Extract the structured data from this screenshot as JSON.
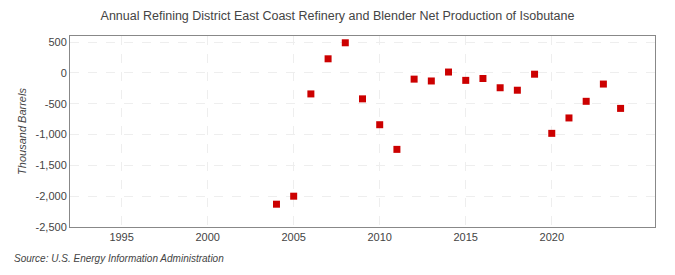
{
  "chart_data": {
    "type": "scatter",
    "title": "Annual Refining District East Coast Refinery and Blender Net Production of Isobutane",
    "ylabel": "Thousand Barrels",
    "source": "Source: U.S. Energy Information Administration",
    "x": [
      2004,
      2005,
      2006,
      2007,
      2008,
      2009,
      2010,
      2011,
      2012,
      2013,
      2014,
      2015,
      2016,
      2017,
      2018,
      2019,
      2020,
      2021,
      2022,
      2023,
      2024
    ],
    "values": [
      -2130,
      -2000,
      -340,
      230,
      490,
      -420,
      -840,
      -1240,
      -100,
      -130,
      15,
      -120,
      -90,
      -240,
      -280,
      -20,
      -980,
      -730,
      -460,
      -180,
      -575
    ],
    "color": "#cc0000",
    "marker": "square",
    "xlim": [
      1992,
      2026
    ],
    "ylim": [
      -2500,
      600
    ],
    "xticks": [
      1995,
      2000,
      2005,
      2010,
      2015,
      2020
    ],
    "yticks": [
      500,
      0,
      -500,
      {
        "value": -1000,
        "label": "-1,000"
      },
      {
        "value": -1500,
        "label": "-1,500"
      },
      {
        "value": -2000,
        "label": "-2,000"
      },
      {
        "value": -2500,
        "label": "-2,500"
      }
    ],
    "grid": true
  }
}
